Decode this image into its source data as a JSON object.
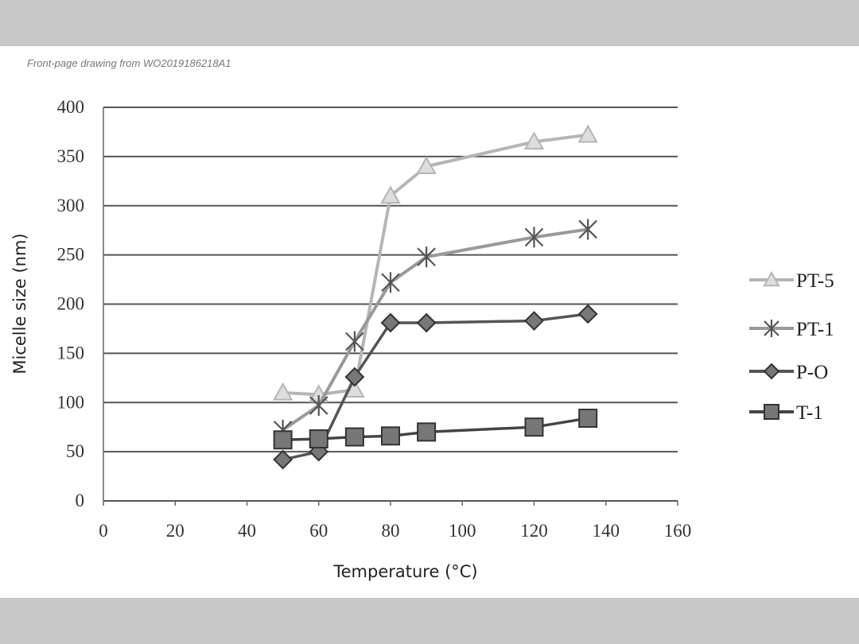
{
  "caption": "Front-page drawing from WO2019186218A1",
  "chart_data": {
    "type": "line",
    "title": "",
    "xlabel": "Temperature (°C)",
    "ylabel": "Micelle size (nm)",
    "xlim": [
      0,
      160
    ],
    "ylim": [
      0,
      400
    ],
    "xticks": [
      "0",
      "20",
      "40",
      "60",
      "80",
      "100",
      "120",
      "140",
      "160"
    ],
    "yticks": [
      "0",
      "50",
      "100",
      "150",
      "200",
      "250",
      "300",
      "350",
      "400"
    ],
    "grid": "horizontal",
    "legend_position": "right",
    "x": [
      50,
      60,
      70,
      80,
      90,
      120,
      135
    ],
    "series": [
      {
        "name": "PT-5",
        "marker": "triangle",
        "color": "#b5b5b5",
        "values": [
          110,
          108,
          113,
          310,
          340,
          365,
          372
        ]
      },
      {
        "name": "PT-1",
        "marker": "asterisk",
        "color": "#999999",
        "values": [
          72,
          97,
          162,
          222,
          248,
          268,
          276
        ]
      },
      {
        "name": "P-O",
        "marker": "diamond",
        "color": "#555555",
        "values": [
          42,
          50,
          126,
          181,
          181,
          183,
          190
        ]
      },
      {
        "name": "T-1",
        "marker": "square",
        "color": "#444444",
        "values": [
          62,
          63,
          65,
          66,
          70,
          75,
          84
        ]
      }
    ]
  }
}
